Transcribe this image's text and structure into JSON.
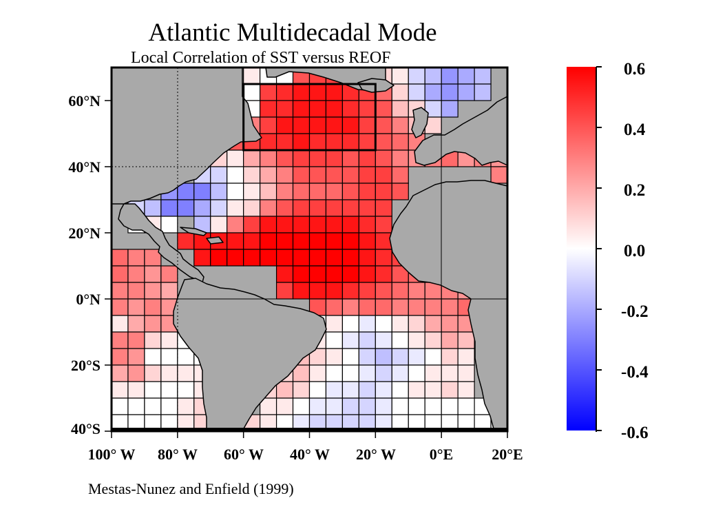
{
  "title": "Atlantic Multidecadal Mode",
  "subtitle": "Local Correlation of SST versus REOF",
  "citation": "Mestas-Nunez and Enfield (1999)",
  "map": {
    "lat_labels": [
      "60°N",
      "40°N",
      "20°N",
      "0°N",
      "20°S",
      "40°S"
    ],
    "lon_labels": [
      "100° W",
      "80° W",
      "60° W",
      "40° W",
      "20° W",
      "0°E",
      "20°E"
    ],
    "extent": {
      "lon_min": -100,
      "lon_max": 20,
      "lat_min": -40,
      "lat_max": 70
    },
    "grid_step_deg": 5,
    "land_color": "#a9a9a9",
    "highlight_box": {
      "lon": [
        -60,
        -20
      ],
      "lat": [
        45,
        65
      ]
    }
  },
  "colorbar": {
    "ticks": [
      "0.6",
      "0.4",
      "0.2",
      "0.0",
      "-0.2",
      "-0.4",
      "-0.6"
    ],
    "min": -0.6,
    "max": 0.6,
    "colors": {
      "positive": "#ff0000",
      "zero": "#ffffff",
      "negative": "#0000ff"
    }
  },
  "correlation_field": {
    "lat_bands_north_edge": [
      70,
      65,
      60,
      55,
      50,
      45,
      40,
      35,
      30,
      25,
      20,
      15,
      10,
      5,
      0,
      -5,
      -10,
      -15,
      -20,
      -25,
      -30,
      -35
    ],
    "lon_columns_west_edge": [
      -100,
      -95,
      -90,
      -85,
      -80,
      -75,
      -70,
      -65,
      -60,
      -55,
      -50,
      -45,
      -40,
      -35,
      -30,
      -25,
      -20,
      -15,
      -10,
      -5,
      0,
      5,
      10,
      15
    ],
    "values": [
      [
        null,
        null,
        null,
        null,
        null,
        null,
        null,
        null,
        0.05,
        0.0,
        0.0,
        0.4,
        0.45,
        0.45,
        0.4,
        0.3,
        0.1,
        0.05,
        -0.1,
        -0.15,
        -0.25,
        -0.2,
        -0.15,
        null
      ],
      [
        null,
        0.0,
        0.0,
        0.0,
        null,
        null,
        null,
        null,
        0.0,
        0.45,
        0.5,
        0.55,
        0.55,
        0.55,
        0.5,
        0.45,
        0.35,
        0.1,
        -0.1,
        -0.2,
        -0.25,
        -0.2,
        -0.15,
        null
      ],
      [
        null,
        null,
        null,
        null,
        null,
        null,
        null,
        null,
        0.0,
        0.5,
        0.5,
        0.55,
        0.55,
        0.55,
        0.5,
        0.45,
        0.4,
        0.15,
        0.1,
        -0.1,
        -0.2,
        null,
        null,
        null
      ],
      [
        null,
        null,
        null,
        null,
        null,
        null,
        null,
        null,
        0.3,
        0.45,
        0.55,
        0.55,
        0.55,
        0.55,
        0.55,
        0.45,
        0.4,
        0.3,
        0.15,
        0.1,
        null,
        null,
        null,
        null
      ],
      [
        null,
        null,
        null,
        null,
        null,
        null,
        null,
        0.4,
        0.45,
        0.5,
        0.5,
        0.55,
        0.5,
        0.5,
        0.5,
        0.45,
        0.4,
        0.35,
        0.3,
        null,
        null,
        null,
        null,
        null
      ],
      [
        null,
        null,
        null,
        null,
        null,
        null,
        0.1,
        0.05,
        0.2,
        0.3,
        0.4,
        0.45,
        0.45,
        0.45,
        0.4,
        0.45,
        0.4,
        0.3,
        0.25,
        0.3,
        0.35,
        0.25,
        0.3,
        0.25
      ],
      [
        null,
        null,
        null,
        null,
        null,
        -0.1,
        -0.1,
        0.0,
        0.1,
        0.2,
        0.3,
        0.4,
        0.4,
        0.4,
        0.4,
        0.45,
        0.45,
        0.35,
        null,
        null,
        null,
        null,
        null,
        0.3
      ],
      [
        null,
        null,
        null,
        -0.25,
        -0.3,
        -0.3,
        -0.15,
        0.0,
        0.05,
        0.15,
        0.3,
        0.35,
        0.35,
        0.35,
        0.4,
        0.45,
        0.45,
        0.4,
        null,
        null,
        null,
        null,
        null,
        null
      ],
      [
        null,
        -0.1,
        -0.15,
        -0.3,
        -0.3,
        -0.2,
        -0.1,
        0.05,
        0.1,
        0.3,
        0.4,
        0.45,
        0.45,
        0.45,
        0.45,
        0.45,
        0.45,
        null,
        null,
        null,
        null,
        null,
        null,
        null
      ],
      [
        null,
        0.0,
        0.05,
        0.0,
        null,
        -0.15,
        0.05,
        0.3,
        0.45,
        0.55,
        0.55,
        0.55,
        0.55,
        0.55,
        0.55,
        0.5,
        0.45,
        null,
        null,
        null,
        null,
        null,
        null,
        null
      ],
      [
        null,
        null,
        null,
        null,
        0.5,
        0.55,
        0.55,
        0.55,
        0.55,
        0.6,
        0.6,
        0.6,
        0.6,
        0.6,
        0.6,
        0.55,
        0.5,
        null,
        null,
        null,
        null,
        null,
        null,
        null
      ],
      [
        0.35,
        0.3,
        0.3,
        null,
        null,
        0.55,
        0.6,
        0.6,
        0.6,
        0.6,
        0.6,
        0.6,
        0.6,
        0.6,
        0.6,
        0.55,
        0.5,
        0.45,
        null,
        null,
        null,
        null,
        null,
        null
      ],
      [
        0.35,
        0.3,
        0.25,
        0.3,
        null,
        null,
        null,
        null,
        null,
        null,
        0.55,
        0.6,
        0.6,
        0.6,
        0.6,
        0.55,
        0.5,
        0.4,
        0.35,
        0.3,
        null,
        null,
        null,
        null
      ],
      [
        0.3,
        0.3,
        0.25,
        0.2,
        null,
        null,
        null,
        null,
        null,
        null,
        0.45,
        0.55,
        0.55,
        0.55,
        0.5,
        0.45,
        0.4,
        0.35,
        0.3,
        0.3,
        0.3,
        0.25,
        null,
        null
      ],
      [
        0.3,
        0.25,
        0.3,
        0.25,
        0.25,
        null,
        null,
        null,
        null,
        null,
        null,
        null,
        0.4,
        0.35,
        0.3,
        0.35,
        0.35,
        0.3,
        0.3,
        0.3,
        0.3,
        0.35,
        null,
        null
      ],
      [
        0.05,
        0.2,
        0.25,
        0.25,
        0.2,
        null,
        null,
        null,
        null,
        null,
        null,
        null,
        0.0,
        0.05,
        0.0,
        -0.05,
        0.0,
        0.05,
        0.1,
        0.2,
        0.25,
        0.25,
        null,
        null
      ],
      [
        0.3,
        0.3,
        0.1,
        0.05,
        0.0,
        null,
        null,
        null,
        null,
        null,
        null,
        null,
        0.05,
        0.0,
        -0.05,
        -0.1,
        -0.05,
        0.0,
        0.05,
        0.1,
        0.2,
        0.15,
        null,
        null
      ],
      [
        0.3,
        0.25,
        0.0,
        0.0,
        0.0,
        0.0,
        null,
        null,
        null,
        null,
        null,
        0.15,
        0.1,
        0.05,
        0.0,
        -0.1,
        -0.15,
        -0.1,
        -0.05,
        0.0,
        0.1,
        0.05,
        null,
        null
      ],
      [
        0.2,
        0.25,
        0.1,
        0.05,
        0.05,
        0.05,
        null,
        null,
        null,
        null,
        0.1,
        0.15,
        0.05,
        0.0,
        0.0,
        -0.05,
        -0.1,
        -0.05,
        0.0,
        0.05,
        0.05,
        0.05,
        null,
        null
      ],
      [
        0.05,
        0.05,
        0.0,
        0.0,
        0.0,
        0.05,
        null,
        null,
        null,
        0.1,
        0.15,
        0.1,
        0.0,
        -0.05,
        -0.05,
        -0.1,
        -0.05,
        0.0,
        0.05,
        0.05,
        0.1,
        0.05,
        null,
        null
      ],
      [
        0.0,
        0.0,
        0.0,
        0.0,
        0.05,
        0.1,
        null,
        null,
        null,
        0.05,
        0.05,
        0.0,
        -0.05,
        -0.05,
        -0.1,
        -0.1,
        -0.05,
        0.0,
        0.0,
        0.0,
        0.0,
        0.0,
        0.0,
        0.0
      ],
      [
        0.0,
        0.0,
        0.0,
        0.0,
        0.05,
        0.1,
        null,
        null,
        0.1,
        0.05,
        0.0,
        -0.05,
        -0.1,
        -0.1,
        -0.1,
        -0.1,
        -0.05,
        0.0,
        0.0,
        0.0,
        0.0,
        0.0,
        0.0,
        0.0
      ]
    ]
  }
}
